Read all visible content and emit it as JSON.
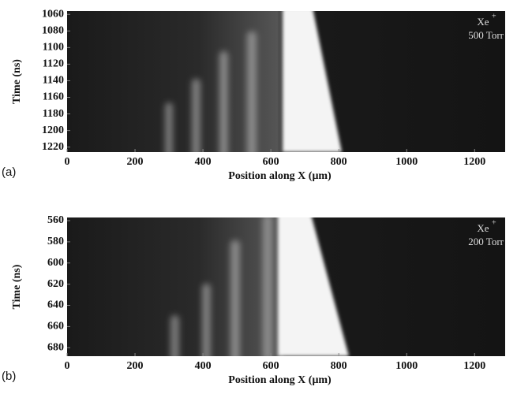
{
  "chart_data": [
    {
      "type": "image",
      "panel_label": "(a)",
      "xlabel": "Position along X (μm)",
      "ylabel": "Time (ns)",
      "annotation": {
        "species": "Xe",
        "charge": "+",
        "pressure": "500 Torr"
      },
      "xlim": [
        0,
        1290
      ],
      "xticks": [
        0,
        200,
        400,
        600,
        800,
        1000,
        1200
      ],
      "ylim": [
        1056,
        1226
      ],
      "yticks": [
        1060,
        1080,
        1100,
        1120,
        1140,
        1160,
        1180,
        1200,
        1220
      ]
    },
    {
      "type": "image",
      "panel_label": "(b)",
      "xlabel": "Position along X (μm)",
      "ylabel": "Time (ns)",
      "annotation": {
        "species": "Xe",
        "charge": "+",
        "pressure": "200 Torr"
      },
      "xlim": [
        0,
        1290
      ],
      "xticks": [
        0,
        200,
        400,
        600,
        800,
        1000,
        1200
      ],
      "ylim": [
        557,
        688
      ],
      "yticks": [
        560,
        580,
        600,
        620,
        640,
        660,
        680
      ]
    }
  ]
}
